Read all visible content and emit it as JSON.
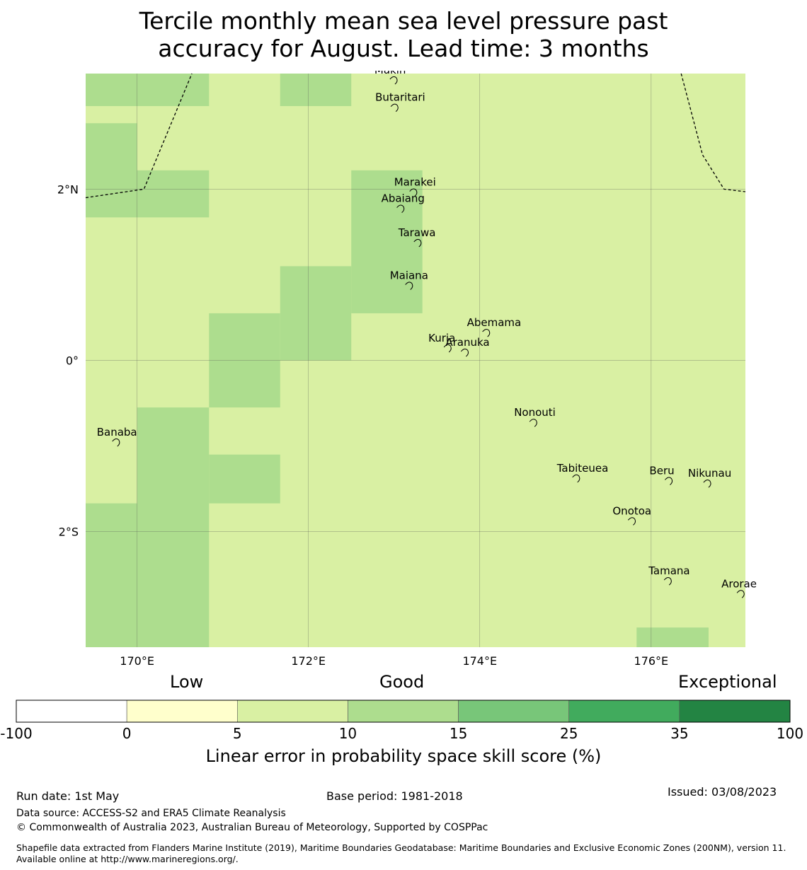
{
  "title": {
    "line1": "Tercile monthly mean sea level pressure past",
    "line2": "accuracy for August. Lead time: 3 months"
  },
  "map": {
    "lon_range": [
      169.4,
      177.1
    ],
    "lat_range": [
      -3.35,
      3.35
    ],
    "x_ticks": [
      {
        "value": 170,
        "label": "170°E"
      },
      {
        "value": 172,
        "label": "172°E"
      },
      {
        "value": 174,
        "label": "174°E"
      },
      {
        "value": 176,
        "label": "176°E"
      }
    ],
    "y_ticks": [
      {
        "value": 2,
        "label": "2°N"
      },
      {
        "value": 0,
        "label": "0°"
      },
      {
        "value": -2,
        "label": "2°S"
      }
    ],
    "background_color": "#d9f0a3",
    "grid": true,
    "skill_cells": [
      {
        "lon": [
          169.4,
          170.84
        ],
        "lat": [
          2.97,
          3.35
        ],
        "class": "10-15"
      },
      {
        "lon": [
          171.67,
          172.5
        ],
        "lat": [
          2.97,
          3.35
        ],
        "class": "10-15"
      },
      {
        "lon": [
          169.4,
          170.0
        ],
        "lat": [
          1.87,
          2.77
        ],
        "class": "10-15"
      },
      {
        "lon": [
          169.4,
          170.84
        ],
        "lat": [
          1.67,
          2.22
        ],
        "class": "10-15"
      },
      {
        "lon": [
          172.5,
          173.33
        ],
        "lat": [
          0.55,
          2.22
        ],
        "class": "10-15"
      },
      {
        "lon": [
          171.67,
          172.5
        ],
        "lat": [
          0.0,
          1.1
        ],
        "class": "10-15"
      },
      {
        "lon": [
          170.84,
          171.67
        ],
        "lat": [
          0.0,
          0.55
        ],
        "class": "10-15"
      },
      {
        "lon": [
          170.84,
          171.67
        ],
        "lat": [
          -0.55,
          0.0
        ],
        "class": "10-15"
      },
      {
        "lon": [
          170.0,
          170.84
        ],
        "lat": [
          -3.35,
          -0.55
        ],
        "class": "10-15"
      },
      {
        "lon": [
          170.84,
          171.67
        ],
        "lat": [
          -1.67,
          -1.1
        ],
        "class": "10-15"
      },
      {
        "lon": [
          169.4,
          170.0
        ],
        "lat": [
          -3.35,
          -1.67
        ],
        "class": "10-15"
      },
      {
        "lon": [
          175.83,
          176.67
        ],
        "lat": [
          -3.35,
          -3.12
        ],
        "class": "10-15"
      }
    ],
    "boundaries": [
      {
        "name": "eez-west",
        "points": [
          [
            169.4,
            1.9
          ],
          [
            170.08,
            2.0
          ],
          [
            170.64,
            3.35
          ]
        ]
      },
      {
        "name": "eez-east",
        "points": [
          [
            176.35,
            3.35
          ],
          [
            176.6,
            2.4
          ],
          [
            176.85,
            2.0
          ],
          [
            177.1,
            1.97
          ]
        ]
      }
    ],
    "islands": [
      {
        "name": "Makin",
        "lon": 172.77,
        "lat": 3.35
      },
      {
        "name": "Butaritari",
        "lon": 172.78,
        "lat": 3.03
      },
      {
        "name": "Marakei",
        "lon": 173.0,
        "lat": 2.04
      },
      {
        "name": "Abaiang",
        "lon": 172.85,
        "lat": 1.85
      },
      {
        "name": "Tarawa",
        "lon": 173.05,
        "lat": 1.45
      },
      {
        "name": "Maiana",
        "lon": 172.95,
        "lat": 0.95
      },
      {
        "name": "Abemama",
        "lon": 173.85,
        "lat": 0.4
      },
      {
        "name": "Kuria",
        "lon": 173.4,
        "lat": 0.22
      },
      {
        "name": "Aranuka",
        "lon": 173.6,
        "lat": 0.17
      },
      {
        "name": "Nonouti",
        "lon": 174.4,
        "lat": -0.65
      },
      {
        "name": "Banaba",
        "lon": 169.53,
        "lat": -0.88
      },
      {
        "name": "Tabiteuea",
        "lon": 174.9,
        "lat": -1.3
      },
      {
        "name": "Beru",
        "lon": 175.98,
        "lat": -1.33
      },
      {
        "name": "Nikunau",
        "lon": 176.43,
        "lat": -1.36
      },
      {
        "name": "Onotoa",
        "lon": 175.55,
        "lat": -1.8
      },
      {
        "name": "Tamana",
        "lon": 175.97,
        "lat": -2.5
      },
      {
        "name": "Arorae",
        "lon": 176.82,
        "lat": -2.65
      }
    ]
  },
  "colorbar": {
    "words": [
      "Low",
      "Good",
      "Exceptional"
    ],
    "bins": [
      {
        "from": -100,
        "to": 0,
        "color": "#ffffff"
      },
      {
        "from": 0,
        "to": 5,
        "color": "#ffffcc"
      },
      {
        "from": 5,
        "to": 10,
        "color": "#d9f0a3"
      },
      {
        "from": 10,
        "to": 15,
        "color": "#addd8e"
      },
      {
        "from": 15,
        "to": 25,
        "color": "#78c679"
      },
      {
        "from": 25,
        "to": 35,
        "color": "#41ab5d"
      },
      {
        "from": 35,
        "to": 100,
        "color": "#238443"
      }
    ],
    "tick_labels": [
      "-100",
      "0",
      "5",
      "10",
      "15",
      "25",
      "35",
      "100"
    ],
    "label": "Linear error in probability space skill score (%)"
  },
  "footer": {
    "run_date": "Run date: 1st May",
    "base_period": "Base period: 1981-2018",
    "issued": "Issued: 03/08/2023",
    "data_source": "Data source: ACCESS-S2 and ERA5 Climate Reanalysis",
    "copyright": "© Commonwealth of Australia 2023, Australian Bureau of Meteorology, Supported by COSPPac",
    "shapefile": "Shapefile data extracted from Flanders Marine Institute (2019), Maritime Boundaries Geodatabase: Maritime Boundaries and Exclusive Economic Zones (200NM), version 11. Available online at http://www.marineregions.org/."
  }
}
